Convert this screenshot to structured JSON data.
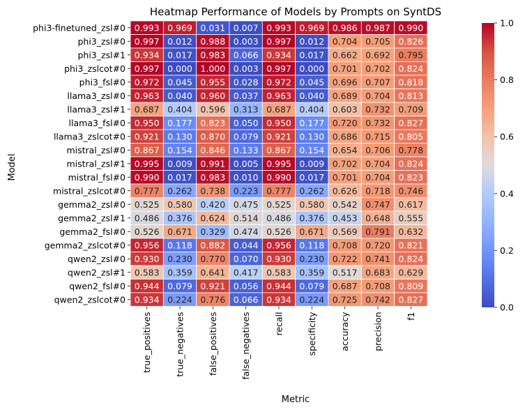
{
  "chart_data": {
    "type": "heatmap",
    "title": "Heatmap Performance of Models by Prompts on SyntDS",
    "xlabel": "Metric",
    "ylabel": "Model",
    "colormap": "coolwarm",
    "vmin": 0,
    "vmax": 1,
    "colorbar_ticks": [
      "0.0",
      "0.2",
      "0.4",
      "0.6",
      "0.8",
      "1.0"
    ],
    "columns": [
      "true_positives",
      "true_negatives",
      "false_positives",
      "false_negatives",
      "recall",
      "specificity",
      "accuracy",
      "precision",
      "f1"
    ],
    "rows": [
      "phi3-finetuned_zsl#0",
      "phi3_zsl#0",
      "phi3_zsl#1",
      "phi3_zslcot#0",
      "phi3_fsl#0",
      "llama3_zsl#0",
      "llama3_zsl#1",
      "llama3_fsl#0",
      "llama3_zslcot#0",
      "mistral_zsl#0",
      "mistral_zsl#1",
      "mistral_fsl#0",
      "mistral_zslcot#0",
      "gemma2_zsl#0",
      "gemma2_zsl#1",
      "gemma2_fsl#0",
      "gemma2_zslcot#0",
      "qwen2_zsl#0",
      "qwen2_zsl#1",
      "qwen2_fsl#0",
      "qwen2_zslcot#0"
    ],
    "values": [
      [
        "0.993",
        "0.969",
        "0.031",
        "0.007",
        "0.993",
        "0.969",
        "0.986",
        "0.987",
        "0.990"
      ],
      [
        "0.997",
        "0.012",
        "0.988",
        "0.003",
        "0.997",
        "0.012",
        "0.704",
        "0.705",
        "0.826"
      ],
      [
        "0.934",
        "0.017",
        "0.983",
        "0.066",
        "0.934",
        "0.017",
        "0.662",
        "0.692",
        "0.795"
      ],
      [
        "0.997",
        "0.000",
        "1.000",
        "0.003",
        "0.997",
        "0.000",
        "0.701",
        "0.702",
        "0.824"
      ],
      [
        "0.972",
        "0.045",
        "0.955",
        "0.028",
        "0.972",
        "0.045",
        "0.696",
        "0.707",
        "0.818"
      ],
      [
        "0.963",
        "0.040",
        "0.960",
        "0.037",
        "0.963",
        "0.040",
        "0.689",
        "0.704",
        "0.813"
      ],
      [
        "0.687",
        "0.404",
        "0.596",
        "0.313",
        "0.687",
        "0.404",
        "0.603",
        "0.732",
        "0.709"
      ],
      [
        "0.950",
        "0.177",
        "0.823",
        "0.050",
        "0.950",
        "0.177",
        "0.720",
        "0.732",
        "0.827"
      ],
      [
        "0.921",
        "0.130",
        "0.870",
        "0.079",
        "0.921",
        "0.130",
        "0.686",
        "0.715",
        "0.805"
      ],
      [
        "0.867",
        "0.154",
        "0.846",
        "0.133",
        "0.867",
        "0.154",
        "0.654",
        "0.706",
        "0.778"
      ],
      [
        "0.995",
        "0.009",
        "0.991",
        "0.005",
        "0.995",
        "0.009",
        "0.702",
        "0.704",
        "0.824"
      ],
      [
        "0.990",
        "0.017",
        "0.983",
        "0.010",
        "0.990",
        "0.017",
        "0.701",
        "0.704",
        "0.823"
      ],
      [
        "0.777",
        "0.262",
        "0.738",
        "0.223",
        "0.777",
        "0.262",
        "0.626",
        "0.718",
        "0.746"
      ],
      [
        "0.525",
        "0.580",
        "0.420",
        "0.475",
        "0.525",
        "0.580",
        "0.542",
        "0.747",
        "0.617"
      ],
      [
        "0.486",
        "0.376",
        "0.624",
        "0.514",
        "0.486",
        "0.376",
        "0.453",
        "0.648",
        "0.555"
      ],
      [
        "0.526",
        "0.671",
        "0.329",
        "0.474",
        "0.526",
        "0.671",
        "0.569",
        "0.791",
        "0.632"
      ],
      [
        "0.956",
        "0.118",
        "0.882",
        "0.044",
        "0.956",
        "0.118",
        "0.708",
        "0.720",
        "0.821"
      ],
      [
        "0.930",
        "0.230",
        "0.770",
        "0.070",
        "0.930",
        "0.230",
        "0.722",
        "0.741",
        "0.824"
      ],
      [
        "0.583",
        "0.359",
        "0.641",
        "0.417",
        "0.583",
        "0.359",
        "0.517",
        "0.683",
        "0.629"
      ],
      [
        "0.944",
        "0.079",
        "0.921",
        "0.056",
        "0.944",
        "0.079",
        "0.687",
        "0.708",
        "0.809"
      ],
      [
        "0.934",
        "0.224",
        "0.776",
        "0.066",
        "0.934",
        "0.224",
        "0.725",
        "0.742",
        "0.827"
      ]
    ]
  }
}
